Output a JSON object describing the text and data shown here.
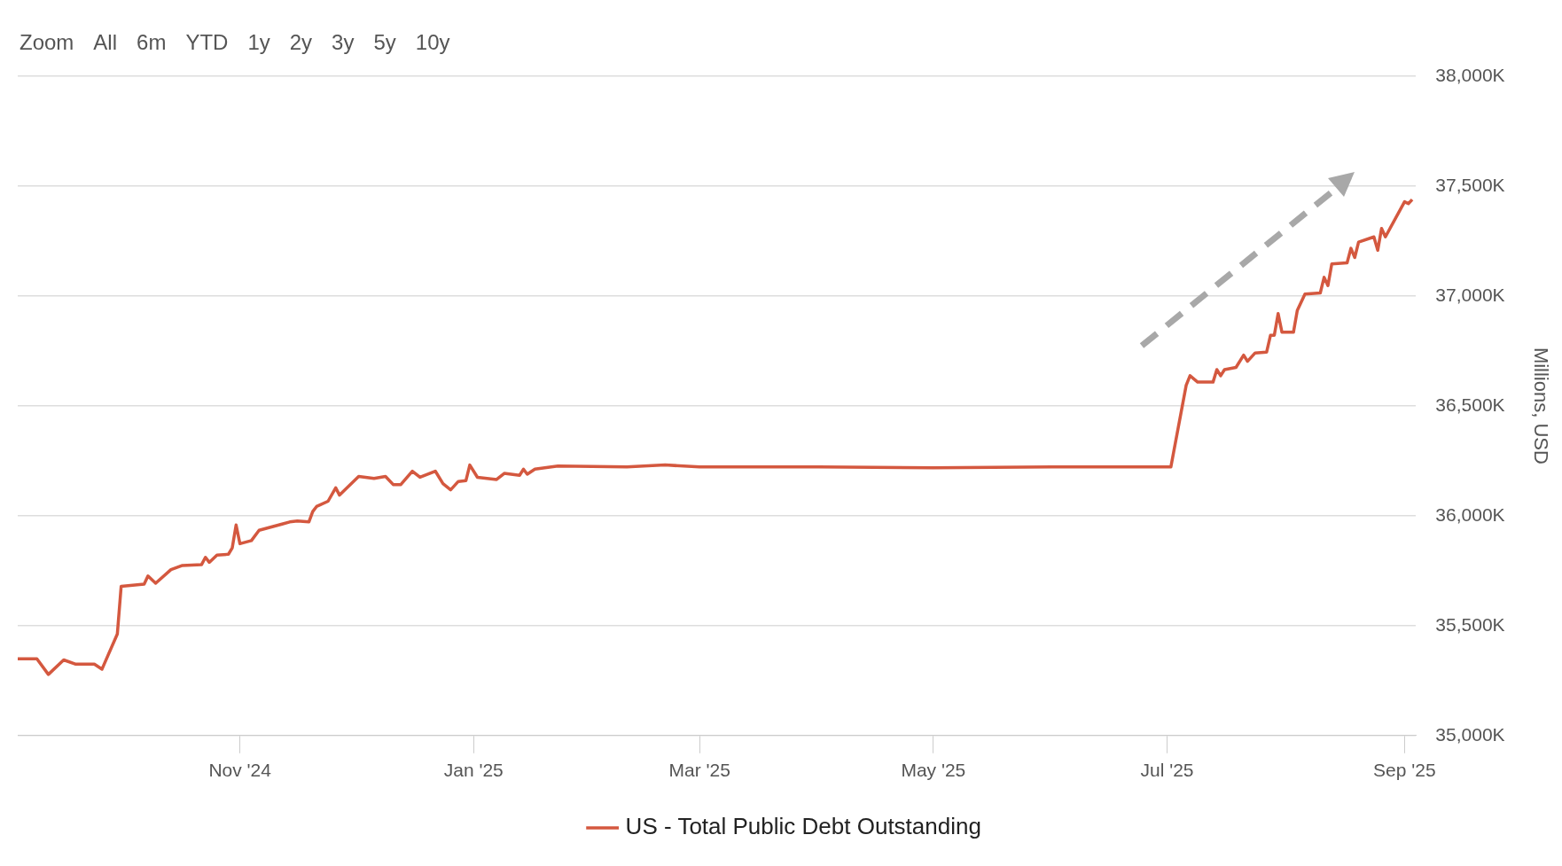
{
  "chart_data": {
    "type": "line",
    "ylabel": "Millions, USD",
    "legend": "bottom",
    "grid": "y",
    "marker": "none",
    "line_style": "solid",
    "annotations": [
      "Zoom",
      "All",
      "6m",
      "YTD",
      "1y",
      "2y",
      "3y",
      "5y",
      "10y"
    ],
    "xlim": [
      "2024-09-04",
      "2025-09-04"
    ],
    "xticks": [
      {
        "value": "2024-11-01",
        "label": "Nov '24"
      },
      {
        "value": "2025-01-01",
        "label": "Jan '25"
      },
      {
        "value": "2025-03-01",
        "label": "Mar '25"
      },
      {
        "value": "2025-05-01",
        "label": "May '25"
      },
      {
        "value": "2025-07-01",
        "label": "Jul '25"
      },
      {
        "value": "2025-09-01",
        "label": "Sep '25"
      }
    ],
    "ylim": [
      35000000,
      38000000
    ],
    "yticks": [
      {
        "value": 35000000,
        "label": "35,000K"
      },
      {
        "value": 35500000,
        "label": "35,500K"
      },
      {
        "value": 36000000,
        "label": "36,000K"
      },
      {
        "value": 36500000,
        "label": "36,500K"
      },
      {
        "value": 37000000,
        "label": "37,000K"
      },
      {
        "value": 37500000,
        "label": "37,500K"
      },
      {
        "value": 38000000,
        "label": "38,000K"
      }
    ],
    "series": [
      {
        "name": "US - Total Public Debt Outstanding",
        "color": "#d4583f",
        "x": [
          "2024-09-04",
          "2024-09-09",
          "2024-09-12",
          "2024-09-16",
          "2024-09-19",
          "2024-09-24",
          "2024-09-26",
          "2024-09-30",
          "2024-10-01",
          "2024-10-07",
          "2024-10-08",
          "2024-10-10",
          "2024-10-14",
          "2024-10-17",
          "2024-10-22",
          "2024-10-23",
          "2024-10-24",
          "2024-10-26",
          "2024-10-29",
          "2024-10-30",
          "2024-10-31",
          "2024-11-01",
          "2024-11-04",
          "2024-11-06",
          "2024-11-12",
          "2024-11-14",
          "2024-11-16",
          "2024-11-19",
          "2024-11-20",
          "2024-11-21",
          "2024-11-24",
          "2024-11-26",
          "2024-11-27",
          "2024-12-02",
          "2024-12-06",
          "2024-12-09",
          "2024-12-11",
          "2024-12-13",
          "2024-12-16",
          "2024-12-18",
          "2024-12-22",
          "2024-12-24",
          "2024-12-26",
          "2024-12-28",
          "2024-12-30",
          "2024-12-31",
          "2025-01-02",
          "2025-01-07",
          "2025-01-09",
          "2025-01-13",
          "2025-01-14",
          "2025-01-15",
          "2025-01-17",
          "2025-01-23",
          "2025-02-10",
          "2025-02-20",
          "2025-03-01",
          "2025-04-01",
          "2025-05-01",
          "2025-06-01",
          "2025-07-02",
          "2025-07-06",
          "2025-07-07",
          "2025-07-09",
          "2025-07-13",
          "2025-07-14",
          "2025-07-15",
          "2025-07-16",
          "2025-07-19",
          "2025-07-21",
          "2025-07-22",
          "2025-07-24",
          "2025-07-27",
          "2025-07-28",
          "2025-07-29",
          "2025-07-30",
          "2025-07-31",
          "2025-08-03",
          "2025-08-04",
          "2025-08-06",
          "2025-08-10",
          "2025-08-11",
          "2025-08-12",
          "2025-08-13",
          "2025-08-17",
          "2025-08-18",
          "2025-08-19",
          "2025-08-20",
          "2025-08-24",
          "2025-08-25",
          "2025-08-26",
          "2025-08-27",
          "2025-09-01",
          "2025-09-02",
          "2025-09-03"
        ],
        "values": [
          35349000,
          35349000,
          35278000,
          35344000,
          35325000,
          35325000,
          35302000,
          35462000,
          35679000,
          35689000,
          35726000,
          35693000,
          35755000,
          35774000,
          35778000,
          35811000,
          35788000,
          35821000,
          35825000,
          35854000,
          35958000,
          35873000,
          35887000,
          35934000,
          35962000,
          35972000,
          35976000,
          35972000,
          36019000,
          36042000,
          36066000,
          36127000,
          36094000,
          36179000,
          36170000,
          36179000,
          36142000,
          36142000,
          36203000,
          36175000,
          36203000,
          36146000,
          36118000,
          36156000,
          36160000,
          36231000,
          36175000,
          36165000,
          36193000,
          36184000,
          36212000,
          36189000,
          36212000,
          36226000,
          36222000,
          36231000,
          36222000,
          36222000,
          36218000,
          36222000,
          36222000,
          36594000,
          36637000,
          36608000,
          36608000,
          36665000,
          36637000,
          36665000,
          36675000,
          36731000,
          36703000,
          36741000,
          36745000,
          36821000,
          36821000,
          36920000,
          36835000,
          36835000,
          36934000,
          37009000,
          37014000,
          37085000,
          37047000,
          37146000,
          37151000,
          37217000,
          37175000,
          37245000,
          37269000,
          37208000,
          37307000,
          37269000,
          37429000,
          37420000,
          37439000
        ]
      }
    ]
  }
}
